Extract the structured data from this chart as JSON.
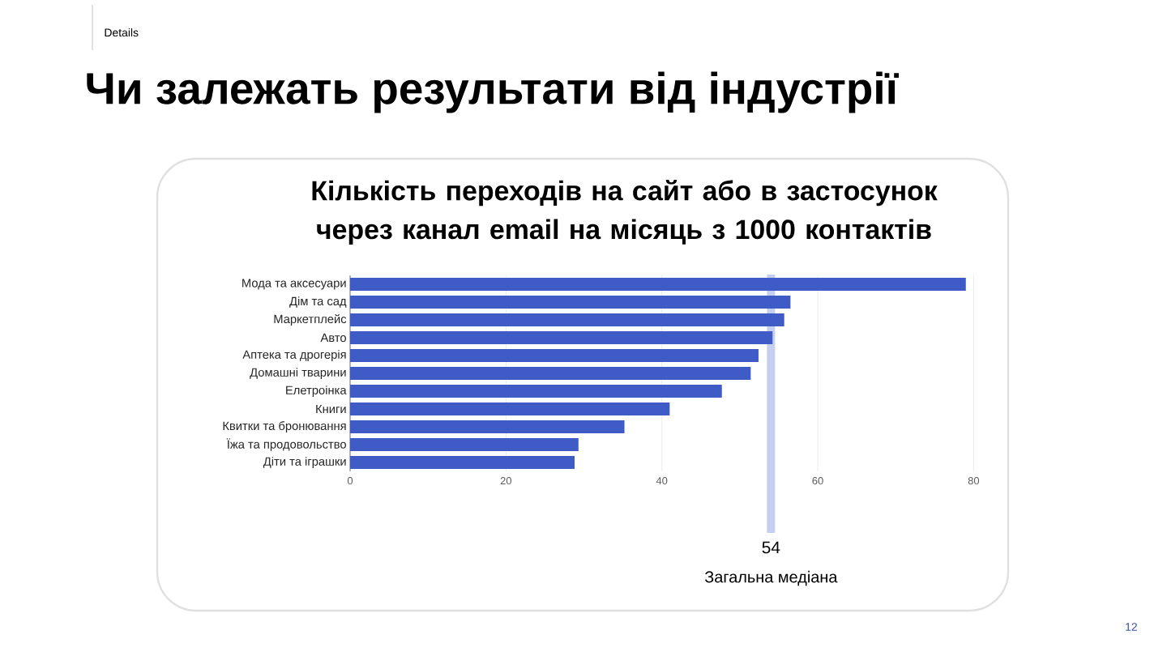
{
  "chart_data": {
    "type": "bar",
    "orientation": "horizontal",
    "title": "Чи залежать результати від індустрії",
    "subtitle": "Кількість переходів на сайт або в застосунок через канал email на місяць з 1000 контактів",
    "categories": [
      "Мода та аксесуари",
      "Дім та сад",
      "Маркетплейс",
      "Авто",
      "Аптека та дрогерія",
      "Домашні тварини",
      "Елетроінка",
      "Книги",
      "Квитки та бронювання",
      "Їжа та продовольство",
      "Діти та іграшки"
    ],
    "values": [
      79,
      56.5,
      55.7,
      54.2,
      52.4,
      51.4,
      47.7,
      41,
      35.2,
      29.3,
      28.8
    ],
    "color": "#3f5bc6",
    "xlim": [
      0,
      80
    ],
    "xticks": [
      0,
      20,
      40,
      60,
      80
    ],
    "grid": "x",
    "ref_lines": [
      {
        "axis": "x",
        "value": 54,
        "label": "Загальна медіана",
        "color": "#c5cff0"
      }
    ],
    "annotations": [
      "Details",
      "12",
      "54"
    ]
  }
}
